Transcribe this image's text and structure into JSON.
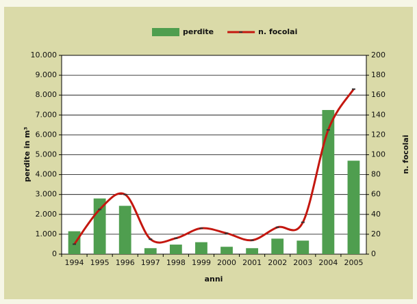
{
  "chart_data": {
    "type": "bar_line",
    "categories": [
      "1994",
      "1995",
      "1996",
      "1997",
      "1998",
      "1999",
      "2000",
      "2001",
      "2002",
      "2003",
      "2004",
      "2005"
    ],
    "series": [
      {
        "name": "perdite",
        "type": "bar",
        "axis": "y",
        "color": "#4f9e4f",
        "values": [
          1150,
          2800,
          2430,
          300,
          480,
          600,
          370,
          300,
          780,
          680,
          7250,
          4700
        ]
      },
      {
        "name": "n. focolai",
        "type": "line",
        "axis": "y2",
        "color": "#c4170f",
        "values": [
          10,
          45,
          60,
          15,
          16,
          26,
          21,
          14,
          27,
          32,
          125,
          166
        ]
      }
    ],
    "ylabel": "perdite in m³",
    "y2label": "n. focolai",
    "xlabel": "anni",
    "ylim": [
      0,
      10000
    ],
    "yticks": [
      0,
      {
        "value": 1000,
        "label": "1.000"
      },
      {
        "value": 2000,
        "label": "2.000"
      },
      {
        "value": 3000,
        "label": "3.000"
      },
      {
        "value": 4000,
        "label": "4.000"
      },
      {
        "value": 5000,
        "label": "5.000"
      },
      {
        "value": 6000,
        "label": "6.000"
      },
      {
        "value": 7000,
        "label": "7.000"
      },
      {
        "value": 8000,
        "label": "8.000"
      },
      {
        "value": 9000,
        "label": "9.000"
      },
      {
        "value": 10000,
        "label": "10.000"
      }
    ],
    "y2lim": [
      0,
      200
    ],
    "y2ticks": [
      0,
      20,
      40,
      60,
      80,
      100,
      120,
      140,
      160,
      180,
      200
    ],
    "grid": true,
    "legend": "top"
  }
}
